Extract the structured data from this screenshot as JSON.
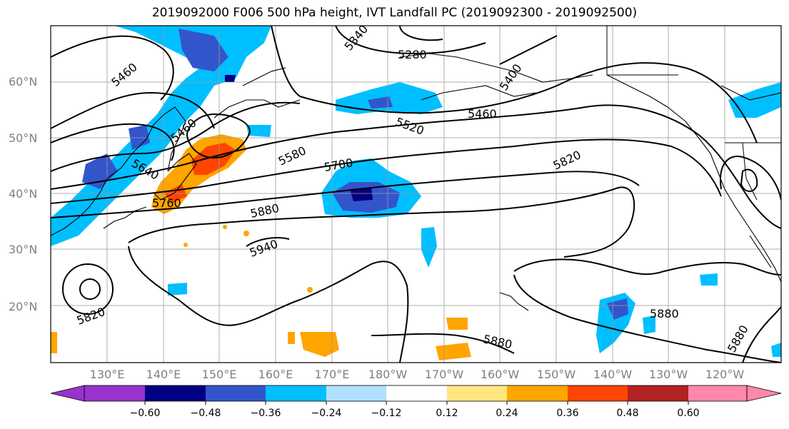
{
  "title": "2019092000 F006 500 hPa height, IVT Landfall PC (2019092300 - 2019092500)",
  "latitude_labels": [
    "20°N",
    "30°N",
    "40°N",
    "50°N",
    "60°N"
  ],
  "longitude_labels": [
    "130°E",
    "140°E",
    "150°E",
    "160°E",
    "170°E",
    "180°W",
    "170°W",
    "160°W",
    "150°W",
    "140°W",
    "130°W",
    "120°W"
  ],
  "contour_labels": [
    "5340",
    "5280",
    "5400",
    "5460",
    "5460",
    "5460",
    "5520",
    "5580",
    "5700",
    "5820",
    "5640",
    "5760",
    "5880",
    "5940",
    "5820",
    "5880",
    "5880",
    "5880"
  ],
  "colorbar": {
    "ticks": [
      "−0.60",
      "−0.48",
      "−0.36",
      "−0.24",
      "−0.12",
      "0.12",
      "0.24",
      "0.36",
      "0.48",
      "0.60"
    ],
    "colors": [
      "#9933cc",
      "#000080",
      "#3355cc",
      "#00bfff",
      "#b0e0ff",
      "#ffffff",
      "#ffe680",
      "#ffa500",
      "#ff4500",
      "#b22222",
      "#ff88aa"
    ]
  }
}
